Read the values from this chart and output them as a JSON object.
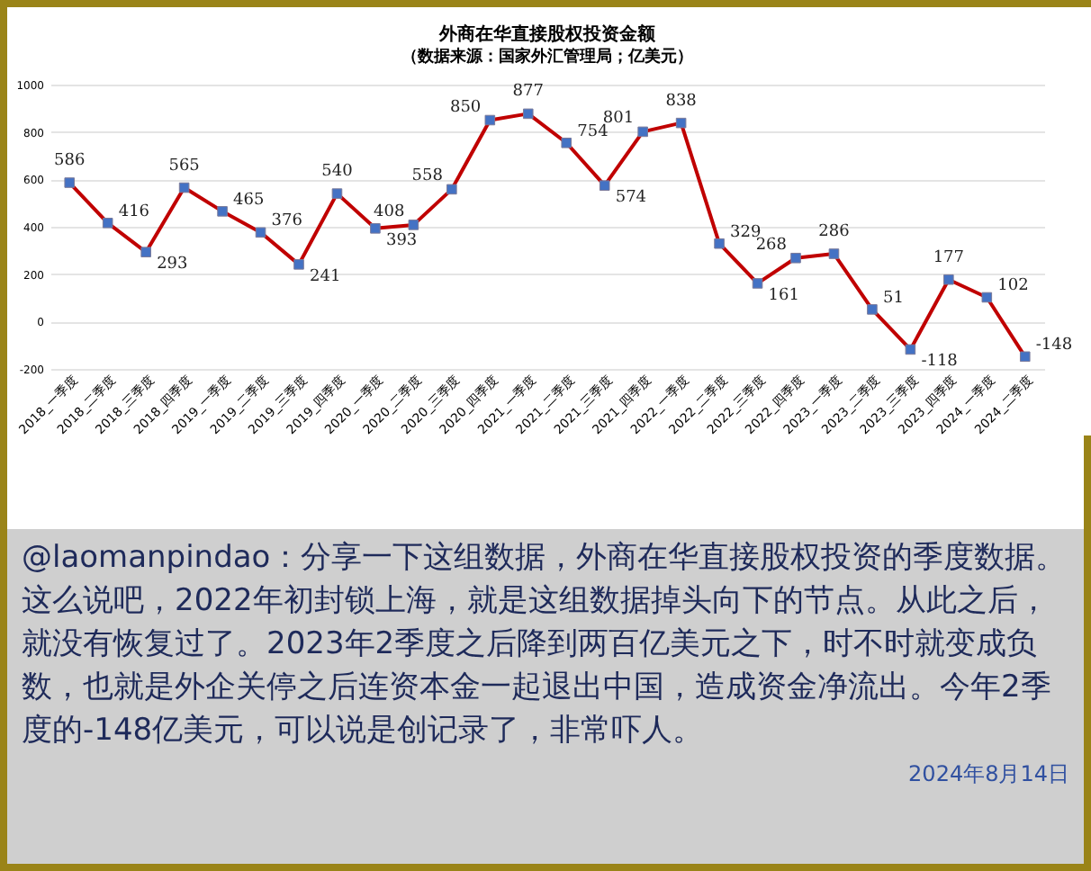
{
  "chart_data": {
    "type": "line",
    "title": "外商在华直接股权投资金额",
    "subtitle": "（数据来源：国家外汇管理局；亿美元）",
    "categories": [
      "2018_一季度",
      "2018_二季度",
      "2018_三季度",
      "2018_四季度",
      "2019_一季度",
      "2019_二季度",
      "2019_三季度",
      "2019_四季度",
      "2020_一季度",
      "2020_二季度",
      "2020_三季度",
      "2020_四季度",
      "2021_一季度",
      "2021_二季度",
      "2021_三季度",
      "2021_四季度",
      "2022_一季度",
      "2022_二季度",
      "2022_三季度",
      "2022_四季度",
      "2023_一季度",
      "2023_二季度",
      "2023_三季度",
      "2023_四季度",
      "2024_一季度",
      "2024_二季度"
    ],
    "series": [
      {
        "color": "#c00000",
        "values": [
          586,
          416,
          293,
          565,
          465,
          376,
          241,
          540,
          393,
          408,
          558,
          850,
          877,
          754,
          574,
          801,
          838,
          329,
          161,
          268,
          286,
          51,
          -118,
          177,
          102,
          -148
        ]
      }
    ],
    "ylim": [
      -200,
      1000
    ],
    "yticks": [
      -200,
      0,
      200,
      400,
      600,
      800,
      1000
    ],
    "grid": "y",
    "marker": "square",
    "data_labels": true,
    "annotations": [
      "@laomanpindao：分享一下这组数据，外商在华直接股权投资的季度数据。这么说吧，2022年初封锁上海，就是这组数据掉头向下的节点。从此之后，就没有恢复过了。2023年2季度之后降到两百亿美元之下，时不时就变成负数，也就是外企关停之后连资本金一起退出中国，造成资金净流出。今年2季度的-148亿美元，可以说是创记录了，非常吓人。",
      "2024年8月14日"
    ]
  }
}
